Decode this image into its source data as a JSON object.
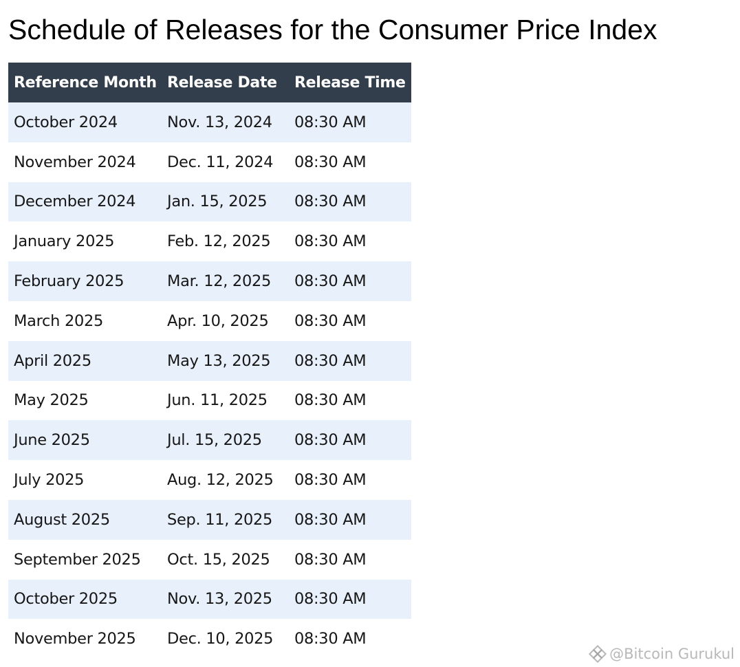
{
  "title": "Schedule of Releases for the Consumer Price Index",
  "table": {
    "headers": [
      "Reference Month",
      "Release Date",
      "Release Time"
    ],
    "rows": [
      [
        "October 2024",
        "Nov. 13, 2024",
        "08:30 AM"
      ],
      [
        "November 2024",
        "Dec. 11, 2024",
        "08:30 AM"
      ],
      [
        "December 2024",
        "Jan. 15, 2025",
        "08:30 AM"
      ],
      [
        "January 2025",
        "Feb. 12, 2025",
        "08:30 AM"
      ],
      [
        "February 2025",
        "Mar. 12, 2025",
        "08:30 AM"
      ],
      [
        "March 2025",
        "Apr. 10, 2025",
        "08:30 AM"
      ],
      [
        "April 2025",
        "May 13, 2025",
        "08:30 AM"
      ],
      [
        "May 2025",
        "Jun. 11, 2025",
        "08:30 AM"
      ],
      [
        "June 2025",
        "Jul. 15, 2025",
        "08:30 AM"
      ],
      [
        "July 2025",
        "Aug. 12, 2025",
        "08:30 AM"
      ],
      [
        "August 2025",
        "Sep. 11, 2025",
        "08:30 AM"
      ],
      [
        "September 2025",
        "Oct. 15, 2025",
        "08:30 AM"
      ],
      [
        "October 2025",
        "Nov. 13, 2025",
        "08:30 AM"
      ],
      [
        "November 2025",
        "Dec. 10, 2025",
        "08:30 AM"
      ]
    ]
  },
  "watermark": {
    "text": "@Bitcoin Gurukul",
    "icon": "binance-diamond-icon"
  },
  "colors": {
    "header_bg": "#333e4c",
    "stripe_bg": "#e8f0fc"
  }
}
